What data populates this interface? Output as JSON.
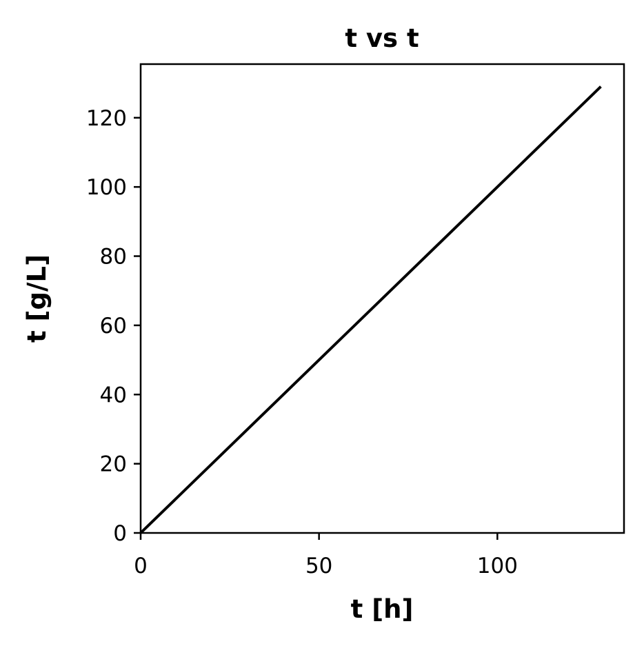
{
  "chart_data": {
    "type": "line",
    "title": "t vs t",
    "xlabel": "t [h]",
    "ylabel": "t [g/L]",
    "xlim": [
      0,
      135.5
    ],
    "ylim": [
      0,
      135.5
    ],
    "xticks": [
      0,
      50,
      100
    ],
    "yticks": [
      0,
      20,
      40,
      60,
      80,
      100,
      120
    ],
    "grid": false,
    "series": [
      {
        "x": [
          0,
          129
        ],
        "values": [
          0,
          129
        ],
        "color": "#000000"
      }
    ]
  }
}
